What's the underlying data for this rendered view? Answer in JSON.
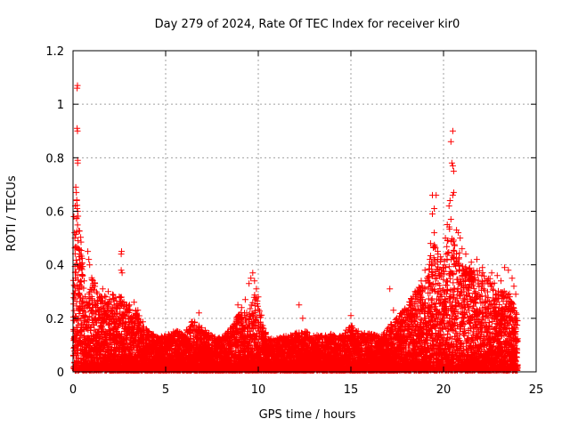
{
  "chart_data": {
    "type": "scatter",
    "title": "Day 279 of 2024, Rate Of TEC Index for receiver kir0",
    "xlabel": "GPS time / hours",
    "ylabel": "ROTI / TECUs",
    "xlim": [
      0,
      25
    ],
    "ylim": [
      0,
      1.2
    ],
    "xticks": [
      0,
      5,
      10,
      15,
      20,
      25
    ],
    "xtick_labels": [
      "0",
      "5",
      "10",
      "15",
      "20",
      "25"
    ],
    "yticks": [
      0,
      0.2,
      0.4,
      0.6,
      0.8,
      1,
      1.2
    ],
    "ytick_labels": [
      "0",
      "0.2",
      "0.4",
      "0.6",
      "0.8",
      "1",
      "1.2"
    ],
    "grid": true,
    "legend": "none",
    "marker": "+",
    "color": "#ff0000",
    "envelope": [
      [
        0.0,
        0.35
      ],
      [
        0.2,
        0.65
      ],
      [
        0.4,
        0.55
      ],
      [
        0.6,
        0.3
      ],
      [
        0.8,
        0.25
      ],
      [
        1.0,
        0.38
      ],
      [
        1.5,
        0.28
      ],
      [
        2.0,
        0.28
      ],
      [
        2.5,
        0.3
      ],
      [
        3.0,
        0.25
      ],
      [
        3.5,
        0.22
      ],
      [
        4.0,
        0.15
      ],
      [
        4.5,
        0.13
      ],
      [
        5.0,
        0.13
      ],
      [
        5.5,
        0.15
      ],
      [
        6.0,
        0.14
      ],
      [
        6.5,
        0.19
      ],
      [
        7.0,
        0.16
      ],
      [
        7.5,
        0.13
      ],
      [
        8.0,
        0.12
      ],
      [
        8.5,
        0.16
      ],
      [
        9.0,
        0.22
      ],
      [
        9.5,
        0.22
      ],
      [
        9.8,
        0.3
      ],
      [
        10.2,
        0.2
      ],
      [
        10.5,
        0.12
      ],
      [
        11.0,
        0.12
      ],
      [
        11.5,
        0.13
      ],
      [
        12.0,
        0.14
      ],
      [
        12.5,
        0.15
      ],
      [
        13.0,
        0.14
      ],
      [
        13.5,
        0.13
      ],
      [
        14.0,
        0.14
      ],
      [
        14.5,
        0.13
      ],
      [
        15.0,
        0.18
      ],
      [
        15.5,
        0.14
      ],
      [
        16.0,
        0.14
      ],
      [
        16.5,
        0.13
      ],
      [
        17.0,
        0.16
      ],
      [
        17.5,
        0.2
      ],
      [
        18.0,
        0.24
      ],
      [
        18.5,
        0.3
      ],
      [
        19.0,
        0.35
      ],
      [
        19.5,
        0.48
      ],
      [
        20.0,
        0.4
      ],
      [
        20.3,
        0.55
      ],
      [
        20.6,
        0.5
      ],
      [
        21.0,
        0.42
      ],
      [
        21.5,
        0.38
      ],
      [
        22.0,
        0.38
      ],
      [
        22.5,
        0.35
      ],
      [
        23.0,
        0.3
      ],
      [
        23.5,
        0.3
      ],
      [
        24.0,
        0.2
      ]
    ],
    "points": [
      [
        0.05,
        0.58
      ],
      [
        0.08,
        0.52
      ],
      [
        0.1,
        0.5
      ],
      [
        0.12,
        0.62
      ],
      [
        0.15,
        0.69
      ],
      [
        0.18,
        0.67
      ],
      [
        0.2,
        0.64
      ],
      [
        0.22,
        0.61
      ],
      [
        0.25,
        0.6
      ],
      [
        0.27,
        0.49
      ],
      [
        0.3,
        0.46
      ],
      [
        0.33,
        0.43
      ],
      [
        0.25,
        0.78
      ],
      [
        0.25,
        0.79
      ],
      [
        0.22,
        0.91
      ],
      [
        0.24,
        0.9
      ],
      [
        0.22,
        1.06
      ],
      [
        0.24,
        1.07
      ],
      [
        0.4,
        0.4
      ],
      [
        0.5,
        0.36
      ],
      [
        0.6,
        0.34
      ],
      [
        0.8,
        0.45
      ],
      [
        0.85,
        0.42
      ],
      [
        0.9,
        0.4
      ],
      [
        2.6,
        0.44
      ],
      [
        2.62,
        0.45
      ],
      [
        2.6,
        0.38
      ],
      [
        2.65,
        0.37
      ],
      [
        1.6,
        0.31
      ],
      [
        1.9,
        0.3
      ],
      [
        3.3,
        0.26
      ],
      [
        3.5,
        0.23
      ],
      [
        6.8,
        0.22
      ],
      [
        8.9,
        0.25
      ],
      [
        9.1,
        0.24
      ],
      [
        9.5,
        0.33
      ],
      [
        9.6,
        0.35
      ],
      [
        9.7,
        0.37
      ],
      [
        9.8,
        0.34
      ],
      [
        9.9,
        0.31
      ],
      [
        10.0,
        0.28
      ],
      [
        10.1,
        0.21
      ],
      [
        9.3,
        0.27
      ],
      [
        12.2,
        0.25
      ],
      [
        12.4,
        0.2
      ],
      [
        15.0,
        0.21
      ],
      [
        17.1,
        0.31
      ],
      [
        17.3,
        0.23
      ],
      [
        18.2,
        0.26
      ],
      [
        18.5,
        0.29
      ],
      [
        18.8,
        0.34
      ],
      [
        19.0,
        0.38
      ],
      [
        19.3,
        0.48
      ],
      [
        19.5,
        0.52
      ],
      [
        19.4,
        0.66
      ],
      [
        19.6,
        0.66
      ],
      [
        19.4,
        0.59
      ],
      [
        19.5,
        0.61
      ],
      [
        19.7,
        0.44
      ],
      [
        19.9,
        0.42
      ],
      [
        20.1,
        0.5
      ],
      [
        20.2,
        0.55
      ],
      [
        20.3,
        0.62
      ],
      [
        20.35,
        0.64
      ],
      [
        20.5,
        0.66
      ],
      [
        20.55,
        0.67
      ],
      [
        20.4,
        0.57
      ],
      [
        20.45,
        0.78
      ],
      [
        20.5,
        0.77
      ],
      [
        20.55,
        0.75
      ],
      [
        20.4,
        0.86
      ],
      [
        20.5,
        0.9
      ],
      [
        20.7,
        0.53
      ],
      [
        20.8,
        0.52
      ],
      [
        20.9,
        0.5
      ],
      [
        21.0,
        0.46
      ],
      [
        21.2,
        0.44
      ],
      [
        21.5,
        0.41
      ],
      [
        21.8,
        0.42
      ],
      [
        22.1,
        0.39
      ],
      [
        22.6,
        0.37
      ],
      [
        22.9,
        0.36
      ],
      [
        23.1,
        0.34
      ],
      [
        23.3,
        0.39
      ],
      [
        23.5,
        0.38
      ],
      [
        23.7,
        0.35
      ],
      [
        23.8,
        0.32
      ],
      [
        23.9,
        0.29
      ]
    ]
  }
}
